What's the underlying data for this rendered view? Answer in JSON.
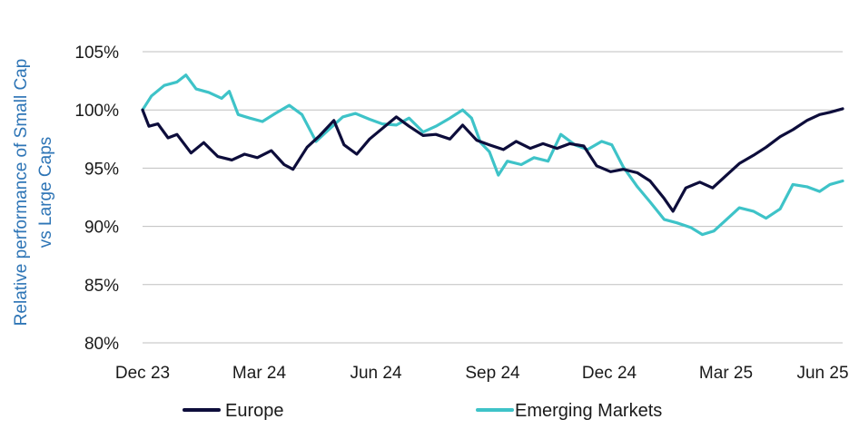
{
  "chart_data": {
    "type": "line",
    "ylabel_lines": [
      "Relative performance of Small Cap",
      "vs Large Caps"
    ],
    "xlabel": "",
    "x_tick_labels": [
      "Dec 23",
      "Mar 24",
      "Jun 24",
      "Sep 24",
      "Dec 24",
      "Mar 25",
      "Jun 25"
    ],
    "x_range": [
      "2023-12-29",
      "2025-06-30"
    ],
    "y_ticks": [
      80,
      85,
      90,
      95,
      100,
      105
    ],
    "y_tick_labels": [
      "80%",
      "85%",
      "90%",
      "95%",
      "100%",
      "105%"
    ],
    "ylim": [
      80,
      105
    ],
    "grid": "horizontal",
    "legend_position": "bottom",
    "colors": {
      "axis_title": "#2e75b6",
      "grid": "#bfbfbf"
    },
    "series": [
      {
        "name": "Europe",
        "color": "#0d0d3b",
        "points": [
          [
            "2023-12-29",
            100
          ],
          [
            "2024-01-03",
            98.6
          ],
          [
            "2024-01-10",
            98.8
          ],
          [
            "2024-01-18",
            97.6
          ],
          [
            "2024-01-25",
            97.9
          ],
          [
            "2024-02-05",
            96.3
          ],
          [
            "2024-02-15",
            97.2
          ],
          [
            "2024-02-26",
            96.0
          ],
          [
            "2024-03-08",
            95.7
          ],
          [
            "2024-03-18",
            96.2
          ],
          [
            "2024-03-28",
            95.9
          ],
          [
            "2024-04-08",
            96.5
          ],
          [
            "2024-04-18",
            95.3
          ],
          [
            "2024-04-25",
            94.9
          ],
          [
            "2024-05-06",
            96.8
          ],
          [
            "2024-05-16",
            97.8
          ],
          [
            "2024-05-27",
            99.1
          ],
          [
            "2024-06-04",
            97.0
          ],
          [
            "2024-06-14",
            96.2
          ],
          [
            "2024-06-24",
            97.5
          ],
          [
            "2024-07-04",
            98.4
          ],
          [
            "2024-07-15",
            99.4
          ],
          [
            "2024-07-25",
            98.6
          ],
          [
            "2024-08-05",
            97.8
          ],
          [
            "2024-08-15",
            97.9
          ],
          [
            "2024-08-26",
            97.5
          ],
          [
            "2024-09-05",
            98.7
          ],
          [
            "2024-09-16",
            97.4
          ],
          [
            "2024-09-26",
            97.0
          ],
          [
            "2024-10-07",
            96.6
          ],
          [
            "2024-10-17",
            97.3
          ],
          [
            "2024-10-28",
            96.7
          ],
          [
            "2024-11-07",
            97.1
          ],
          [
            "2024-11-18",
            96.7
          ],
          [
            "2024-11-28",
            97.1
          ],
          [
            "2024-12-09",
            96.9
          ],
          [
            "2024-12-19",
            95.2
          ],
          [
            "2024-12-30",
            94.7
          ],
          [
            "2025-01-09",
            94.9
          ],
          [
            "2025-01-20",
            94.6
          ],
          [
            "2025-01-30",
            93.9
          ],
          [
            "2025-02-10",
            92.4
          ],
          [
            "2025-02-17",
            91.3
          ],
          [
            "2025-02-27",
            93.3
          ],
          [
            "2025-03-10",
            93.8
          ],
          [
            "2025-03-20",
            93.3
          ],
          [
            "2025-03-31",
            94.4
          ],
          [
            "2025-04-10",
            95.4
          ],
          [
            "2025-04-21",
            96.1
          ],
          [
            "2025-05-01",
            96.8
          ],
          [
            "2025-05-12",
            97.7
          ],
          [
            "2025-05-22",
            98.3
          ],
          [
            "2025-06-02",
            99.1
          ],
          [
            "2025-06-12",
            99.6
          ],
          [
            "2025-06-20",
            99.8
          ],
          [
            "2025-06-30",
            100.1
          ]
        ]
      },
      {
        "name": "Emerging Markets",
        "color": "#3ec3c8",
        "points": [
          [
            "2023-12-29",
            100
          ],
          [
            "2024-01-05",
            101.2
          ],
          [
            "2024-01-15",
            102.1
          ],
          [
            "2024-01-25",
            102.4
          ],
          [
            "2024-02-01",
            103.0
          ],
          [
            "2024-02-09",
            101.8
          ],
          [
            "2024-02-19",
            101.5
          ],
          [
            "2024-02-29",
            101.0
          ],
          [
            "2024-03-06",
            101.6
          ],
          [
            "2024-03-13",
            99.6
          ],
          [
            "2024-03-22",
            99.3
          ],
          [
            "2024-04-01",
            99.0
          ],
          [
            "2024-04-11",
            99.7
          ],
          [
            "2024-04-22",
            100.4
          ],
          [
            "2024-05-02",
            99.6
          ],
          [
            "2024-05-13",
            97.3
          ],
          [
            "2024-05-23",
            98.3
          ],
          [
            "2024-06-03",
            99.4
          ],
          [
            "2024-06-13",
            99.7
          ],
          [
            "2024-06-24",
            99.2
          ],
          [
            "2024-07-04",
            98.8
          ],
          [
            "2024-07-15",
            98.7
          ],
          [
            "2024-07-25",
            99.3
          ],
          [
            "2024-08-05",
            98.1
          ],
          [
            "2024-08-15",
            98.6
          ],
          [
            "2024-08-26",
            99.3
          ],
          [
            "2024-09-05",
            100.0
          ],
          [
            "2024-09-12",
            99.3
          ],
          [
            "2024-09-19",
            97.2
          ],
          [
            "2024-09-26",
            96.4
          ],
          [
            "2024-10-03",
            94.4
          ],
          [
            "2024-10-10",
            95.6
          ],
          [
            "2024-10-21",
            95.3
          ],
          [
            "2024-10-31",
            95.9
          ],
          [
            "2024-11-11",
            95.6
          ],
          [
            "2024-11-21",
            97.9
          ],
          [
            "2024-12-02",
            97.0
          ],
          [
            "2024-12-12",
            96.6
          ],
          [
            "2024-12-23",
            97.3
          ],
          [
            "2024-12-31",
            97.0
          ],
          [
            "2025-01-09",
            95.1
          ],
          [
            "2025-01-20",
            93.4
          ],
          [
            "2025-01-30",
            92.1
          ],
          [
            "2025-02-10",
            90.6
          ],
          [
            "2025-02-20",
            90.3
          ],
          [
            "2025-03-03",
            89.9
          ],
          [
            "2025-03-12",
            89.3
          ],
          [
            "2025-03-21",
            89.6
          ],
          [
            "2025-03-31",
            90.6
          ],
          [
            "2025-04-10",
            91.6
          ],
          [
            "2025-04-21",
            91.3
          ],
          [
            "2025-05-01",
            90.7
          ],
          [
            "2025-05-12",
            91.5
          ],
          [
            "2025-05-22",
            93.6
          ],
          [
            "2025-06-02",
            93.4
          ],
          [
            "2025-06-12",
            93.0
          ],
          [
            "2025-06-20",
            93.6
          ],
          [
            "2025-06-30",
            93.9
          ]
        ]
      }
    ]
  }
}
